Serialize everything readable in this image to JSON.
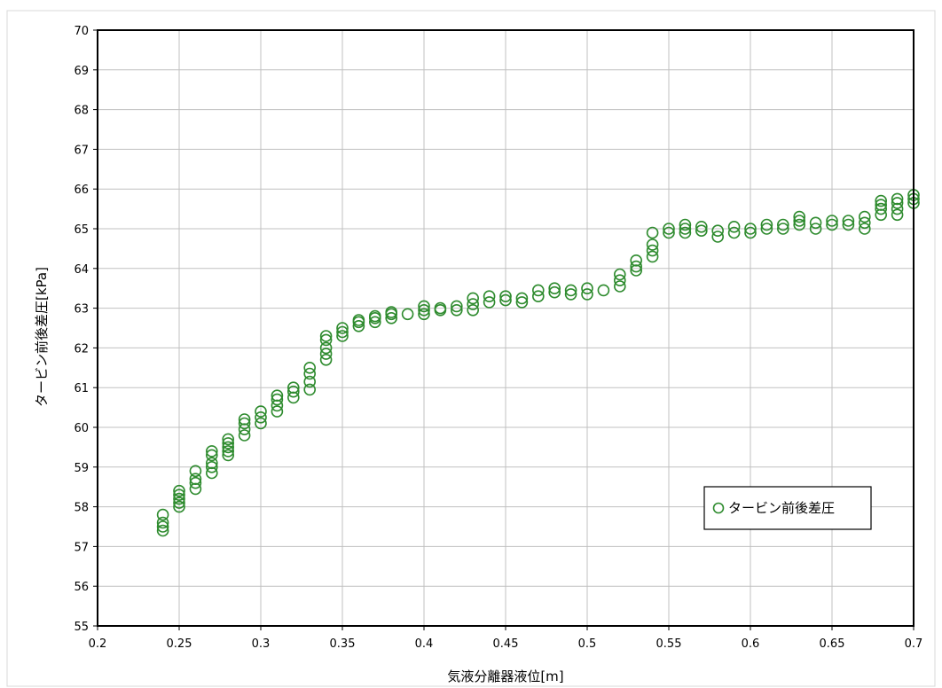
{
  "chart_data": {
    "type": "scatter",
    "title": "",
    "xlabel": "気液分離器液位[m]",
    "ylabel": "タービン前後差圧[kPa]",
    "xlim": [
      0.2,
      0.7
    ],
    "ylim": [
      55,
      70
    ],
    "xticks": [
      "0.2",
      "0.25",
      "0.3",
      "0.35",
      "0.4",
      "0.45",
      "0.5",
      "0.55",
      "0.6",
      "0.65",
      "0.7"
    ],
    "yticks": [
      "55",
      "56",
      "57",
      "58",
      "59",
      "60",
      "61",
      "62",
      "63",
      "64",
      "65",
      "66",
      "67",
      "68",
      "69",
      "70"
    ],
    "grid": true,
    "legend_position": "right",
    "series": [
      {
        "name": "タービン前後差圧",
        "color": "#2e8b2e",
        "marker": "open-circle",
        "points": [
          [
            0.24,
            57.4
          ],
          [
            0.24,
            57.5
          ],
          [
            0.24,
            57.6
          ],
          [
            0.24,
            57.8
          ],
          [
            0.25,
            58.0
          ],
          [
            0.25,
            58.1
          ],
          [
            0.25,
            58.2
          ],
          [
            0.25,
            58.3
          ],
          [
            0.25,
            58.4
          ],
          [
            0.26,
            58.45
          ],
          [
            0.26,
            58.6
          ],
          [
            0.26,
            58.7
          ],
          [
            0.26,
            58.9
          ],
          [
            0.27,
            58.85
          ],
          [
            0.27,
            59.0
          ],
          [
            0.27,
            59.1
          ],
          [
            0.27,
            59.3
          ],
          [
            0.27,
            59.4
          ],
          [
            0.28,
            59.3
          ],
          [
            0.28,
            59.4
          ],
          [
            0.28,
            59.5
          ],
          [
            0.28,
            59.6
          ],
          [
            0.28,
            59.7
          ],
          [
            0.29,
            59.8
          ],
          [
            0.29,
            59.95
          ],
          [
            0.29,
            60.1
          ],
          [
            0.29,
            60.2
          ],
          [
            0.3,
            60.1
          ],
          [
            0.3,
            60.25
          ],
          [
            0.3,
            60.4
          ],
          [
            0.31,
            60.4
          ],
          [
            0.31,
            60.55
          ],
          [
            0.31,
            60.7
          ],
          [
            0.31,
            60.8
          ],
          [
            0.32,
            60.75
          ],
          [
            0.32,
            60.9
          ],
          [
            0.32,
            61.0
          ],
          [
            0.33,
            60.95
          ],
          [
            0.33,
            61.15
          ],
          [
            0.33,
            61.35
          ],
          [
            0.33,
            61.5
          ],
          [
            0.34,
            61.7
          ],
          [
            0.34,
            61.85
          ],
          [
            0.34,
            62.0
          ],
          [
            0.34,
            62.2
          ],
          [
            0.34,
            62.3
          ],
          [
            0.35,
            62.3
          ],
          [
            0.35,
            62.4
          ],
          [
            0.35,
            62.5
          ],
          [
            0.36,
            62.55
          ],
          [
            0.36,
            62.65
          ],
          [
            0.36,
            62.7
          ],
          [
            0.37,
            62.65
          ],
          [
            0.37,
            62.75
          ],
          [
            0.37,
            62.8
          ],
          [
            0.38,
            62.75
          ],
          [
            0.38,
            62.85
          ],
          [
            0.38,
            62.9
          ],
          [
            0.39,
            62.85
          ],
          [
            0.4,
            62.85
          ],
          [
            0.4,
            62.95
          ],
          [
            0.4,
            63.05
          ],
          [
            0.41,
            62.95
          ],
          [
            0.41,
            63.0
          ],
          [
            0.42,
            62.95
          ],
          [
            0.42,
            63.05
          ],
          [
            0.43,
            62.95
          ],
          [
            0.43,
            63.1
          ],
          [
            0.43,
            63.25
          ],
          [
            0.44,
            63.15
          ],
          [
            0.44,
            63.3
          ],
          [
            0.45,
            63.2
          ],
          [
            0.45,
            63.3
          ],
          [
            0.46,
            63.15
          ],
          [
            0.46,
            63.25
          ],
          [
            0.47,
            63.3
          ],
          [
            0.47,
            63.45
          ],
          [
            0.48,
            63.4
          ],
          [
            0.48,
            63.5
          ],
          [
            0.49,
            63.35
          ],
          [
            0.49,
            63.45
          ],
          [
            0.5,
            63.35
          ],
          [
            0.5,
            63.5
          ],
          [
            0.51,
            63.45
          ],
          [
            0.52,
            63.55
          ],
          [
            0.52,
            63.7
          ],
          [
            0.52,
            63.85
          ],
          [
            0.53,
            63.95
          ],
          [
            0.53,
            64.05
          ],
          [
            0.53,
            64.2
          ],
          [
            0.54,
            64.3
          ],
          [
            0.54,
            64.45
          ],
          [
            0.54,
            64.6
          ],
          [
            0.54,
            64.9
          ],
          [
            0.55,
            64.9
          ],
          [
            0.55,
            65.0
          ],
          [
            0.56,
            64.9
          ],
          [
            0.56,
            65.0
          ],
          [
            0.56,
            65.1
          ],
          [
            0.57,
            64.95
          ],
          [
            0.57,
            65.05
          ],
          [
            0.58,
            64.8
          ],
          [
            0.58,
            64.95
          ],
          [
            0.59,
            64.9
          ],
          [
            0.59,
            65.05
          ],
          [
            0.6,
            64.9
          ],
          [
            0.6,
            65.0
          ],
          [
            0.61,
            65.0
          ],
          [
            0.61,
            65.1
          ],
          [
            0.62,
            65.0
          ],
          [
            0.62,
            65.1
          ],
          [
            0.63,
            65.1
          ],
          [
            0.63,
            65.2
          ],
          [
            0.63,
            65.3
          ],
          [
            0.64,
            65.0
          ],
          [
            0.64,
            65.15
          ],
          [
            0.65,
            65.1
          ],
          [
            0.65,
            65.2
          ],
          [
            0.66,
            65.1
          ],
          [
            0.66,
            65.2
          ],
          [
            0.67,
            65.0
          ],
          [
            0.67,
            65.15
          ],
          [
            0.67,
            65.3
          ],
          [
            0.68,
            65.35
          ],
          [
            0.68,
            65.5
          ],
          [
            0.68,
            65.6
          ],
          [
            0.68,
            65.7
          ],
          [
            0.69,
            65.35
          ],
          [
            0.69,
            65.5
          ],
          [
            0.69,
            65.65
          ],
          [
            0.69,
            65.75
          ],
          [
            0.7,
            65.65
          ],
          [
            0.7,
            65.75
          ],
          [
            0.7,
            65.85
          ]
        ]
      }
    ]
  }
}
